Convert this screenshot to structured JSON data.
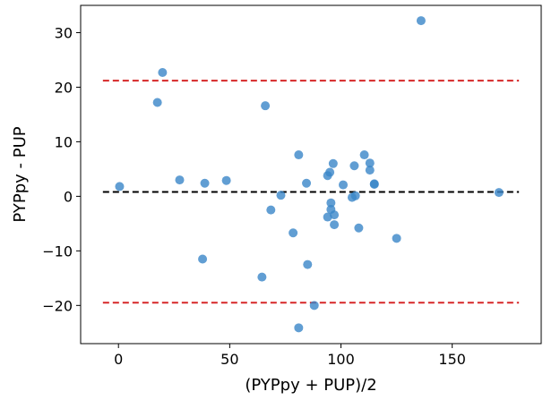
{
  "chart_data": {
    "type": "scatter",
    "title": "",
    "xlabel": "(PYPpy + PUP)/2",
    "ylabel": "PYPpy - PUP",
    "xlim": [
      -17,
      190
    ],
    "ylim": [
      -27,
      35
    ],
    "xticks": [
      0,
      50,
      100,
      150
    ],
    "yticks": [
      -20,
      -10,
      0,
      10,
      20,
      30
    ],
    "grid": false,
    "colors": {
      "points": "#3a86c8",
      "mean_line": "#000000",
      "limit_lines": "#d62728"
    },
    "mean_difference": 0.8,
    "upper_limit": 21.2,
    "lower_limit": -19.5,
    "hline_range": [
      -7,
      180
    ],
    "points": [
      {
        "x": 0.5,
        "y": 1.8
      },
      {
        "x": 17.5,
        "y": 17.2
      },
      {
        "x": 19.8,
        "y": 22.7
      },
      {
        "x": 27.5,
        "y": 3.0
      },
      {
        "x": 37.8,
        "y": -11.5
      },
      {
        "x": 38.8,
        "y": 2.4
      },
      {
        "x": 48.5,
        "y": 2.9
      },
      {
        "x": 64.5,
        "y": -14.8
      },
      {
        "x": 66.0,
        "y": 16.6
      },
      {
        "x": 68.5,
        "y": -2.5
      },
      {
        "x": 73.0,
        "y": 0.2
      },
      {
        "x": 78.5,
        "y": -6.7
      },
      {
        "x": 81.0,
        "y": 7.6
      },
      {
        "x": 81.0,
        "y": -24.1
      },
      {
        "x": 84.5,
        "y": 2.4
      },
      {
        "x": 85.0,
        "y": -12.5
      },
      {
        "x": 88.0,
        "y": -20.0
      },
      {
        "x": 94.0,
        "y": 3.8
      },
      {
        "x": 94.0,
        "y": -3.8
      },
      {
        "x": 95.0,
        "y": 4.4
      },
      {
        "x": 95.5,
        "y": -1.2
      },
      {
        "x": 95.5,
        "y": -2.4
      },
      {
        "x": 96.5,
        "y": 6.0
      },
      {
        "x": 97.0,
        "y": -3.4
      },
      {
        "x": 97.0,
        "y": -5.2
      },
      {
        "x": 101.0,
        "y": 2.1
      },
      {
        "x": 105.0,
        "y": -0.2
      },
      {
        "x": 106.0,
        "y": 5.6
      },
      {
        "x": 106.5,
        "y": 0.1
      },
      {
        "x": 108.0,
        "y": -5.8
      },
      {
        "x": 110.5,
        "y": 7.6
      },
      {
        "x": 113.0,
        "y": 6.1
      },
      {
        "x": 113.0,
        "y": 4.8
      },
      {
        "x": 115.0,
        "y": 2.3
      },
      {
        "x": 115.0,
        "y": 2.2
      },
      {
        "x": 125.0,
        "y": -7.7
      },
      {
        "x": 136.0,
        "y": 32.2
      },
      {
        "x": 171.0,
        "y": 0.7
      }
    ]
  }
}
